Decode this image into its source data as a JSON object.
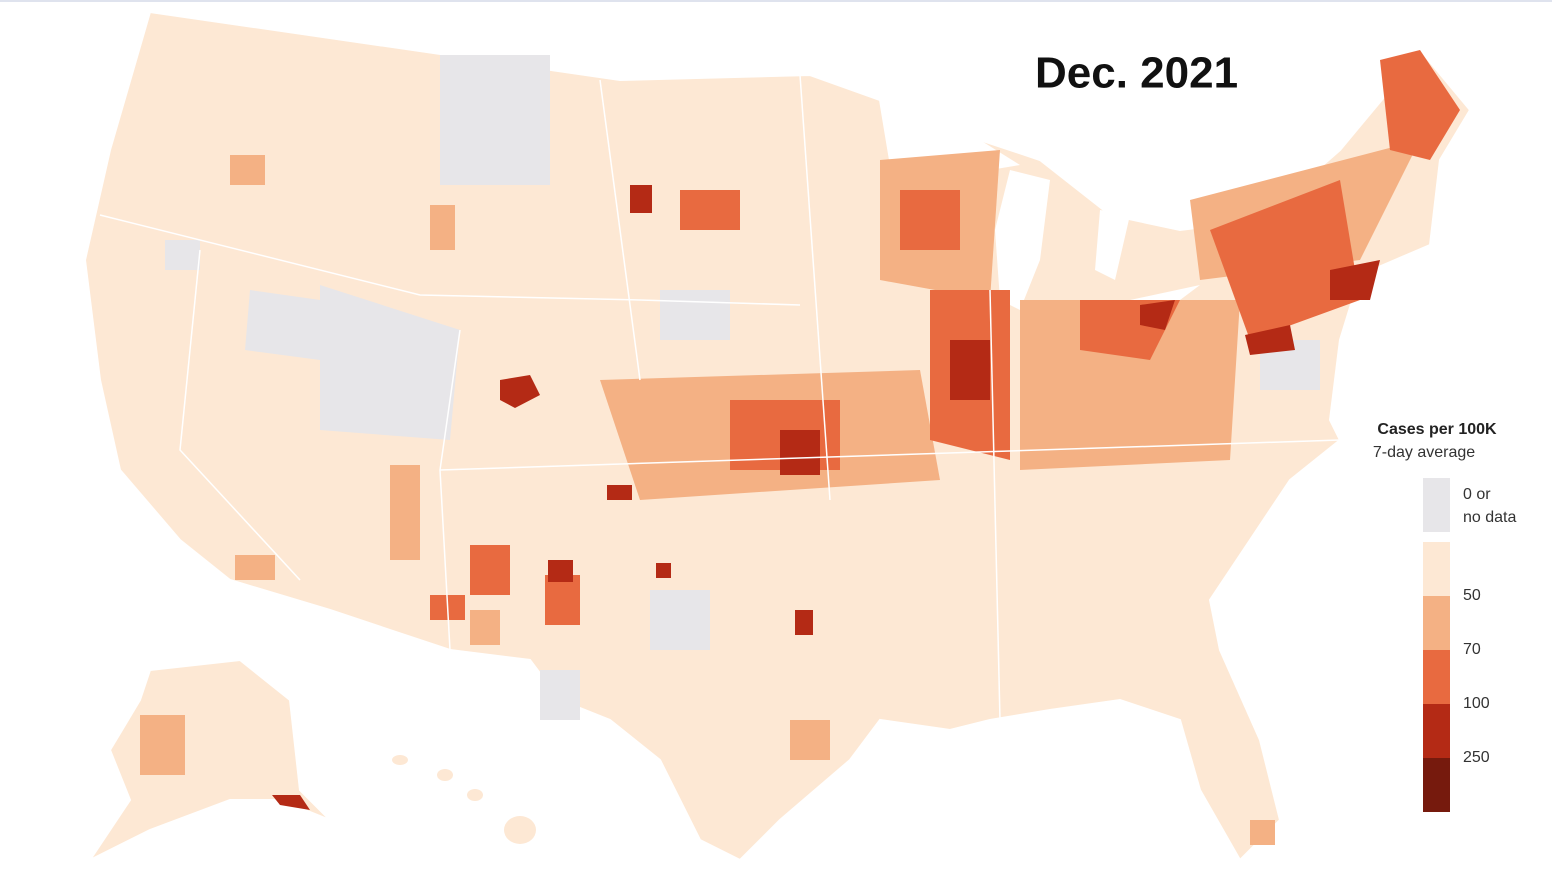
{
  "title": "Dec. 2021",
  "legend": {
    "title": "Cases per 100K",
    "subtitle": "7-day average",
    "no_data": {
      "label": "0 or no data",
      "color": "#e7e6e9"
    },
    "colors": [
      "#fde8d4",
      "#f4b184",
      "#e86a40",
      "#b42a15",
      "#761a0d"
    ],
    "breaks": [
      50,
      70,
      100,
      250
    ]
  }
}
